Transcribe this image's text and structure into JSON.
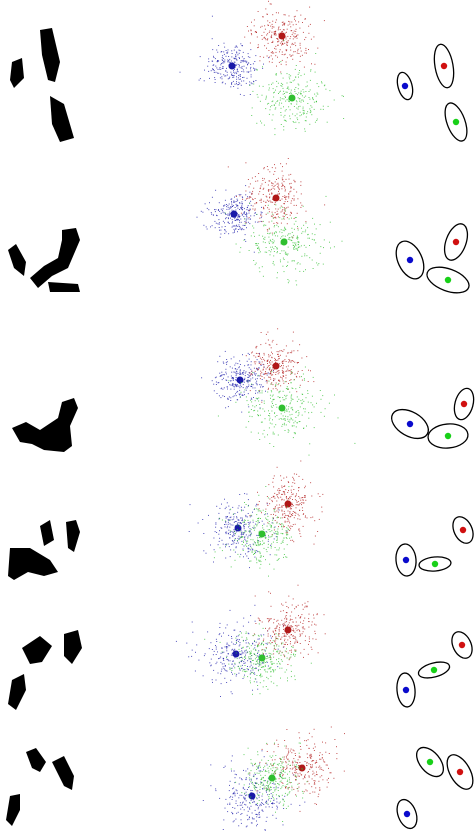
{
  "colors": {
    "background": "#ffffff",
    "silhouette": "#000000",
    "ellipse_stroke": "#000000",
    "cluster_blue": "#1a1aa8",
    "cluster_red": "#b01818",
    "cluster_green": "#2fbf2f",
    "center_blue": "#0a0acc",
    "center_red": "#d01010",
    "center_green": "#18d018"
  },
  "columns": [
    "silhouette",
    "point-clouds",
    "ellipse-fits"
  ],
  "panel_count": 6
}
